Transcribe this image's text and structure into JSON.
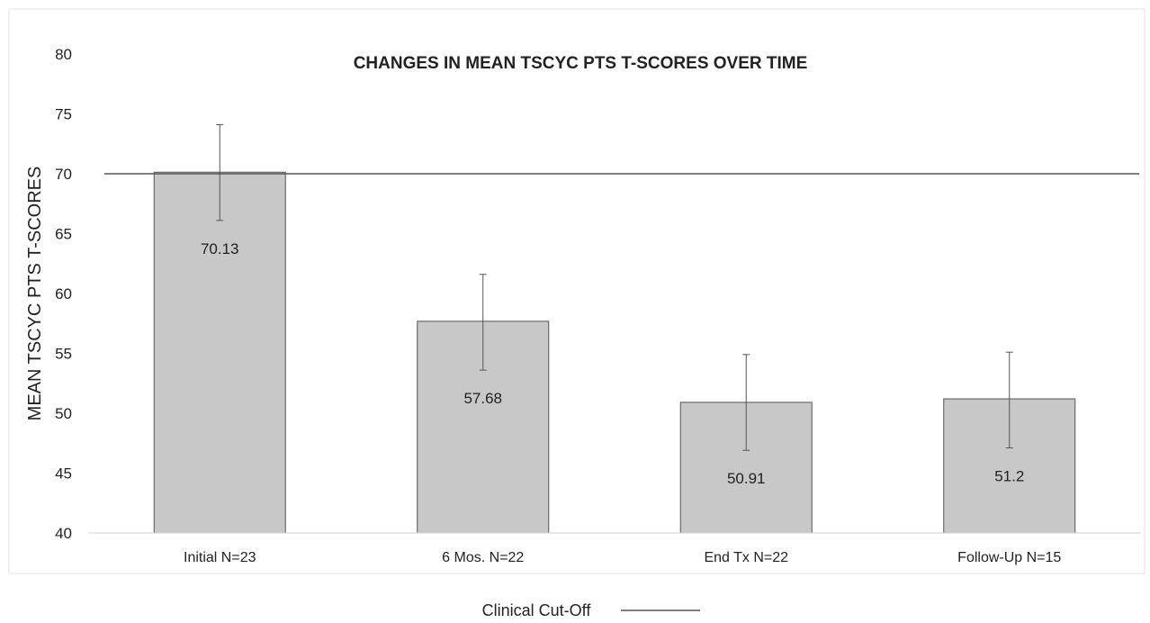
{
  "chart_data": {
    "type": "bar",
    "title": "CHANGES IN MEAN TSCYC PTS T-SCORES OVER TIME",
    "xlabel": "",
    "ylabel": "MEAN TSCYC PTS T-SCORES",
    "ylim": [
      40,
      80
    ],
    "yticks": [
      40,
      45,
      50,
      55,
      60,
      65,
      70,
      75,
      80
    ],
    "categories": [
      "Initial N=23",
      "6 Mos. N=22",
      "End Tx N=22",
      "Follow-Up N=15"
    ],
    "values": [
      70.13,
      57.68,
      50.91,
      51.2
    ],
    "value_labels": [
      "70.13",
      "57.68",
      "50.91",
      "51.2"
    ],
    "error_bars": [
      {
        "low": 66.1,
        "high": 74.1
      },
      {
        "low": 53.6,
        "high": 61.6
      },
      {
        "low": 46.9,
        "high": 54.9
      },
      {
        "low": 47.1,
        "high": 55.1
      }
    ],
    "reference_line": {
      "value": 70,
      "name": "Clinical Cut-Off"
    },
    "legend": {
      "position": "bottom",
      "entries": [
        "Clinical Cut-Off"
      ]
    },
    "grid": false,
    "colors": {
      "bar_fill": "#c8c8c8",
      "bar_stroke": "#555555",
      "line": "#555555"
    }
  }
}
